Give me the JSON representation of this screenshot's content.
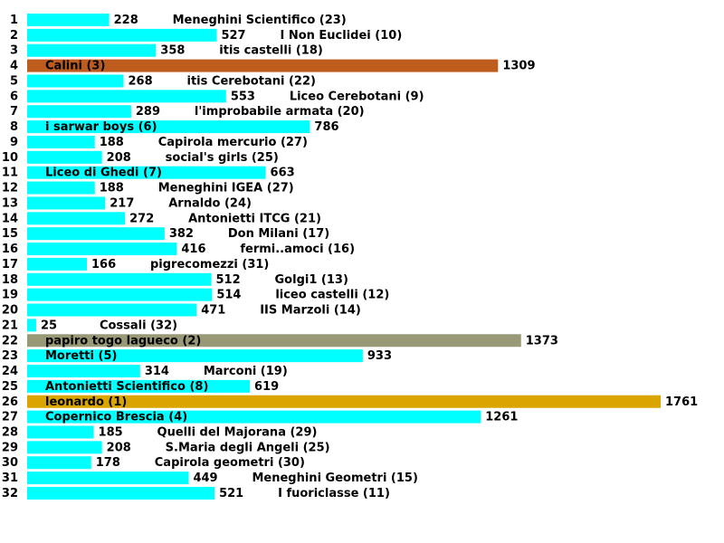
{
  "chart_data": {
    "type": "bar",
    "orientation": "horizontal",
    "title": "",
    "xlim": [
      0,
      1761
    ],
    "colors": {
      "default": "#00ffff",
      "rank1": "#dba500",
      "rank2": "#999977",
      "rank3": "#bd5c1c"
    },
    "rows": [
      {
        "index": "1",
        "value": 228,
        "label": "Meneghini Scientifico (23)"
      },
      {
        "index": "2",
        "value": 527,
        "label": "I Non Euclidei (10)"
      },
      {
        "index": "3",
        "value": 358,
        "label": "itis castelli (18)"
      },
      {
        "index": "4",
        "value": 1309,
        "label": "Calini (3)",
        "color": "rank3"
      },
      {
        "index": "5",
        "value": 268,
        "label": "itis Cerebotani (22)"
      },
      {
        "index": "6",
        "value": 553,
        "label": "Liceo Cerebotani (9)"
      },
      {
        "index": "7",
        "value": 289,
        "label": "l'improbabile armata (20)"
      },
      {
        "index": "8",
        "value": 786,
        "label": "i sarwar boys (6)"
      },
      {
        "index": "9",
        "value": 188,
        "label": "Capirola mercurio (27)"
      },
      {
        "index": "10",
        "value": 208,
        "label": "social's girls (25)"
      },
      {
        "index": "11",
        "value": 663,
        "label": "Liceo di Ghedi (7)"
      },
      {
        "index": "12",
        "value": 188,
        "label": "Meneghini IGEA (27)"
      },
      {
        "index": "13",
        "value": 217,
        "label": "Arnaldo (24)"
      },
      {
        "index": "14",
        "value": 272,
        "label": "Antonietti ITCG (21)"
      },
      {
        "index": "15",
        "value": 382,
        "label": "Don Milani (17)"
      },
      {
        "index": "16",
        "value": 416,
        "label": "fermi..amoci (16)"
      },
      {
        "index": "17",
        "value": 166,
        "label": "pigrecomezzi (31)"
      },
      {
        "index": "18",
        "value": 512,
        "label": "Golgi1 (13)"
      },
      {
        "index": "19",
        "value": 514,
        "label": "liceo castelli (12)"
      },
      {
        "index": "20",
        "value": 471,
        "label": "IIS Marzoli (14)"
      },
      {
        "index": "21",
        "value": 25,
        "label": "Cossali (32)"
      },
      {
        "index": "22",
        "value": 1373,
        "label": "papiro togo lagueco (2)",
        "color": "rank2"
      },
      {
        "index": "23",
        "value": 933,
        "label": "Moretti (5)"
      },
      {
        "index": "24",
        "value": 314,
        "label": "Marconi (19)"
      },
      {
        "index": "25",
        "value": 619,
        "label": "Antonietti Scientifico (8)"
      },
      {
        "index": "26",
        "value": 1761,
        "label": "leonardo (1)",
        "color": "rank1"
      },
      {
        "index": "27",
        "value": 1261,
        "label": "Copernico Brescia (4)"
      },
      {
        "index": "28",
        "value": 185,
        "label": "Quelli del Majorana (29)"
      },
      {
        "index": "29",
        "value": 208,
        "label": "S.Maria degli Angeli (25)"
      },
      {
        "index": "30",
        "value": 178,
        "label": "Capirola geometri (30)"
      },
      {
        "index": "31",
        "value": 449,
        "label": "Meneghini Geometri (15)"
      },
      {
        "index": "32",
        "value": 521,
        "label": "I fuoriclasse (11)"
      }
    ]
  }
}
